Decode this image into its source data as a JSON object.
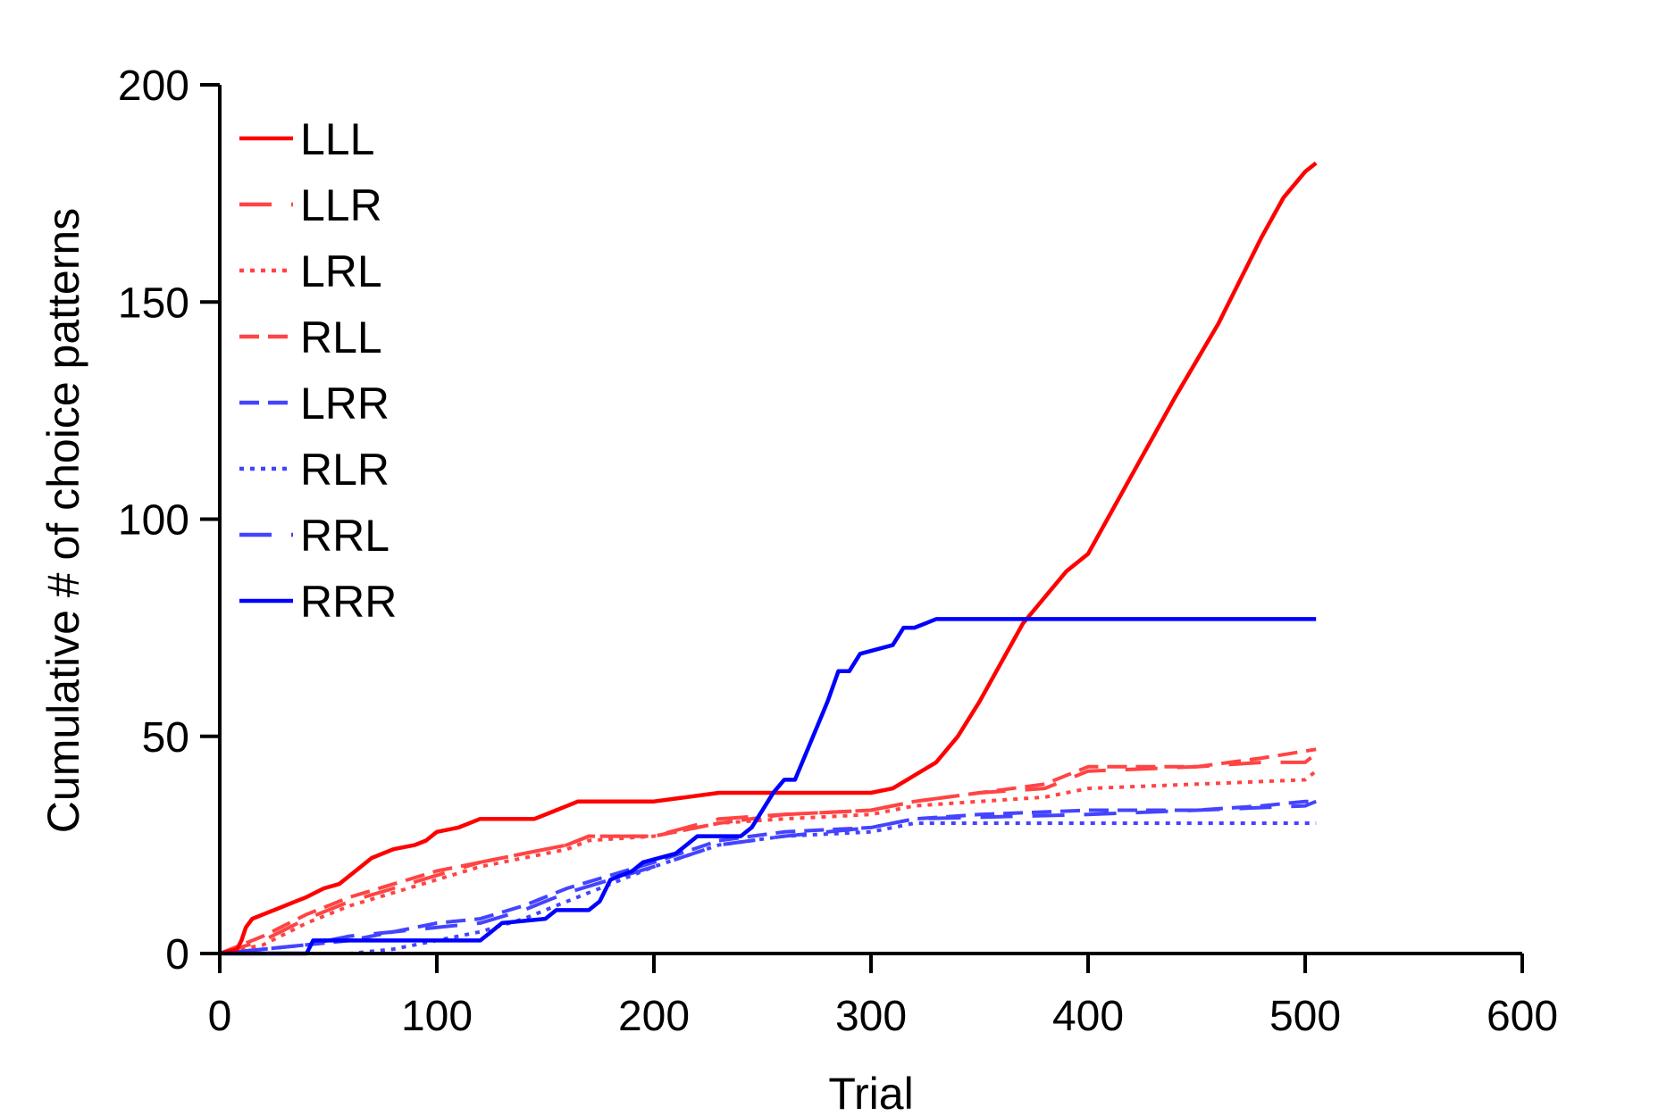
{
  "chart_data": {
    "type": "line",
    "xlabel": "Trial",
    "ylabel": "Cumulative # of choice patterns",
    "xlim": [
      0,
      600
    ],
    "ylim": [
      0,
      200
    ],
    "xticks": [
      "0",
      "100",
      "200",
      "300",
      "400",
      "500",
      "600"
    ],
    "yticks": [
      "0",
      "50",
      "100",
      "150",
      "200"
    ],
    "grid": false,
    "legend_position": "top-left",
    "series": [
      {
        "name": "LLL",
        "color": "#ff0000",
        "style": "solid",
        "x": [
          0,
          8,
          10,
          12,
          15,
          20,
          25,
          35,
          40,
          48,
          55,
          65,
          70,
          80,
          90,
          95,
          100,
          110,
          120,
          130,
          145,
          155,
          165,
          200,
          230,
          260,
          300,
          310,
          320,
          330,
          340,
          350,
          360,
          370,
          380,
          390,
          400,
          420,
          440,
          460,
          470,
          480,
          490,
          500,
          505
        ],
        "y": [
          0,
          1,
          3,
          6,
          8,
          9,
          10,
          12,
          13,
          15,
          16,
          20,
          22,
          24,
          25,
          26,
          28,
          29,
          31,
          31,
          31,
          33,
          35,
          35,
          37,
          37,
          37,
          38,
          41,
          44,
          50,
          58,
          67,
          76,
          82,
          88,
          92,
          110,
          128,
          145,
          155,
          165,
          174,
          180,
          182
        ]
      },
      {
        "name": "LLR",
        "color": "#ff4444",
        "style": "longdash",
        "x": [
          0,
          20,
          40,
          60,
          80,
          100,
          120,
          140,
          160,
          170,
          200,
          230,
          260,
          300,
          320,
          350,
          380,
          400,
          450,
          480,
          500,
          505
        ],
        "y": [
          0,
          3,
          8,
          12,
          15,
          18,
          21,
          23,
          25,
          27,
          27,
          31,
          32,
          33,
          35,
          37,
          38,
          42,
          43,
          44,
          44,
          46
        ]
      },
      {
        "name": "LRL",
        "color": "#ff4444",
        "style": "dotted",
        "x": [
          0,
          20,
          40,
          60,
          80,
          100,
          120,
          140,
          160,
          170,
          200,
          230,
          260,
          300,
          320,
          350,
          380,
          400,
          450,
          500,
          505
        ],
        "y": [
          0,
          2,
          7,
          11,
          14,
          17,
          20,
          22,
          24,
          26,
          27,
          30,
          31,
          32,
          34,
          35,
          36,
          38,
          39,
          40,
          42
        ]
      },
      {
        "name": "RLL",
        "color": "#ff4444",
        "style": "dashed",
        "x": [
          0,
          20,
          40,
          60,
          80,
          100,
          120,
          140,
          160,
          170,
          200,
          230,
          260,
          300,
          320,
          350,
          380,
          400,
          450,
          480,
          505
        ],
        "y": [
          0,
          4,
          9,
          13,
          16,
          19,
          21,
          23,
          25,
          27,
          27,
          30,
          32,
          33,
          35,
          37,
          39,
          43,
          43,
          45,
          47
        ]
      },
      {
        "name": "LRR",
        "color": "#4444ff",
        "style": "dashed",
        "x": [
          0,
          40,
          60,
          80,
          100,
          120,
          140,
          160,
          180,
          200,
          230,
          260,
          300,
          320,
          350,
          400,
          450,
          480,
          500,
          505
        ],
        "y": [
          0,
          2,
          3,
          5,
          7,
          8,
          11,
          15,
          18,
          21,
          26,
          28,
          29,
          31,
          32,
          33,
          33,
          34,
          35,
          35
        ]
      },
      {
        "name": "RLR",
        "color": "#4444ff",
        "style": "dotted",
        "x": [
          0,
          60,
          80,
          100,
          120,
          140,
          160,
          180,
          200,
          230,
          260,
          300,
          320,
          400,
          450,
          505
        ],
        "y": [
          0,
          0,
          1,
          3,
          5,
          8,
          12,
          16,
          20,
          25,
          27,
          28,
          30,
          30,
          30,
          30
        ]
      },
      {
        "name": "RRL",
        "color": "#4444ff",
        "style": "longdash",
        "x": [
          0,
          40,
          60,
          80,
          100,
          120,
          140,
          160,
          180,
          200,
          230,
          260,
          300,
          320,
          400,
          450,
          500,
          505
        ],
        "y": [
          0,
          2,
          4,
          5,
          6,
          7,
          10,
          14,
          17,
          20,
          25,
          27,
          29,
          31,
          32,
          33,
          34,
          35
        ]
      },
      {
        "name": "RRR",
        "color": "#0000ff",
        "style": "solid",
        "x": [
          0,
          40,
          43,
          120,
          125,
          130,
          150,
          155,
          170,
          175,
          180,
          190,
          195,
          210,
          215,
          220,
          240,
          245,
          255,
          260,
          265,
          280,
          285,
          290,
          295,
          310,
          315,
          320,
          325,
          330,
          505
        ],
        "y": [
          0,
          0,
          3,
          3,
          5,
          7,
          8,
          10,
          10,
          12,
          17,
          19,
          21,
          23,
          25,
          27,
          27,
          29,
          37,
          40,
          40,
          58,
          65,
          65,
          69,
          71,
          75,
          75,
          76,
          77,
          77
        ]
      }
    ]
  }
}
